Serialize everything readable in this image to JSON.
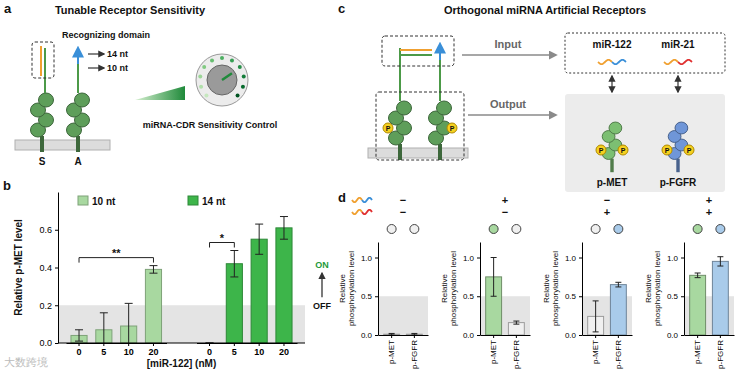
{
  "panel_labels": [
    "a",
    "b",
    "c",
    "d"
  ],
  "panel_a": {
    "title": "Tunable Receptor Sensitivity",
    "domain_label": "Recognizing domain",
    "lengths": [
      "14 nt",
      "10 nt"
    ],
    "control_label": "miRNA-CDR Sensitivity Control",
    "receptor_labels": [
      "S",
      "A"
    ]
  },
  "panel_c": {
    "title": "Orthogonal miRNA Artificial Receptors",
    "input_label": "Input",
    "output_label": "Output",
    "inputs": [
      "miR-122",
      "miR-21"
    ],
    "outputs": [
      "p-MET",
      "p-FGFR"
    ],
    "phospho_label": "P"
  },
  "watermark": "大数跨境",
  "chart_data": [
    {
      "type": "bar",
      "ylabel": "Relative p-MET level",
      "xlabel": "[miR-122] (nM)",
      "categories": [
        "0",
        "5",
        "10",
        "20",
        "0",
        "5",
        "10",
        "20"
      ],
      "series": [
        {
          "name": "10 nt",
          "color": "#a8d8a0",
          "values": [
            0.04,
            0.07,
            0.09,
            0.39,
            null,
            null,
            null,
            null
          ],
          "errors": [
            0.03,
            0.09,
            0.12,
            0.02,
            null,
            null,
            null,
            null
          ]
        },
        {
          "name": "14 nt",
          "color": "#3db54a",
          "values": [
            null,
            null,
            null,
            null,
            0.0,
            0.42,
            0.55,
            0.61
          ],
          "errors": [
            null,
            null,
            null,
            null,
            0.0,
            0.07,
            0.08,
            0.06
          ]
        }
      ],
      "ylim": [
        0,
        0.8
      ],
      "yticks": [
        {
          "value": 0,
          "label": "0.0"
        },
        {
          "value": 0.2,
          "label": "0.2"
        },
        {
          "value": 0.4,
          "label": "0.4"
        },
        {
          "value": 0.6,
          "label": "0.6"
        }
      ],
      "legend": "upper left",
      "band": [
        0,
        0.2
      ],
      "annotations": [
        {
          "text": "**",
          "from": 0,
          "to": 3
        },
        {
          "text": "*",
          "from": 4,
          "to": 5
        }
      ],
      "threshold_labels": [
        "ON",
        "OFF"
      ]
    },
    {
      "type": "bar",
      "ylabel": "Relative phosphorylation level",
      "categories": [
        "p-MET",
        "p-FGFR"
      ],
      "values": [
        0.01,
        0.01
      ],
      "errors": [
        0.01,
        0.01
      ],
      "colors": [
        "#f0f0f0",
        "#f0f0f0"
      ],
      "ylim": [
        0,
        1.2
      ],
      "yticks": [
        {
          "value": 0,
          "label": "0.0"
        },
        {
          "value": 0.5,
          "label": "0.5"
        },
        {
          "value": 1,
          "label": "1.0"
        }
      ],
      "band": [
        0,
        0.5
      ],
      "inputs": [
        "−",
        "−"
      ]
    },
    {
      "type": "bar",
      "ylabel": "Relative phosphorylation level",
      "categories": [
        "p-MET",
        "p-FGFR"
      ],
      "values": [
        0.75,
        0.16
      ],
      "errors": [
        0.25,
        0.02
      ],
      "colors": [
        "#a8d8a0",
        "#f0f0f0"
      ],
      "ylim": [
        0,
        1.2
      ],
      "yticks": [
        {
          "value": 0,
          "label": "0.0"
        },
        {
          "value": 0.5,
          "label": "0.5"
        },
        {
          "value": 1,
          "label": "1.0"
        }
      ],
      "band": [
        0,
        0.5
      ],
      "inputs": [
        "+",
        "−"
      ]
    },
    {
      "type": "bar",
      "ylabel": "Relative phosphorylation level",
      "categories": [
        "p-MET",
        "p-FGFR"
      ],
      "values": [
        0.24,
        0.65
      ],
      "errors": [
        0.2,
        0.03
      ],
      "colors": [
        "#f0f0f0",
        "#a9cbea"
      ],
      "ylim": [
        0,
        1.2
      ],
      "yticks": [
        {
          "value": 0,
          "label": "0.0"
        },
        {
          "value": 0.5,
          "label": "0.5"
        },
        {
          "value": 1,
          "label": "1.0"
        }
      ],
      "band": [
        0,
        0.5
      ],
      "inputs": [
        "−",
        "+"
      ]
    },
    {
      "type": "bar",
      "ylabel": "Relative phosphorylation level",
      "categories": [
        "p-MET",
        "p-FGFR"
      ],
      "values": [
        0.77,
        0.95
      ],
      "errors": [
        0.03,
        0.06
      ],
      "colors": [
        "#a8d8a0",
        "#a9cbea"
      ],
      "ylim": [
        0,
        1.2
      ],
      "yticks": [
        {
          "value": 0,
          "label": "0.0"
        },
        {
          "value": 0.5,
          "label": "0.5"
        },
        {
          "value": 1,
          "label": "1.0"
        }
      ],
      "band": [
        0,
        0.5
      ],
      "inputs": [
        "+",
        "+"
      ]
    }
  ]
}
